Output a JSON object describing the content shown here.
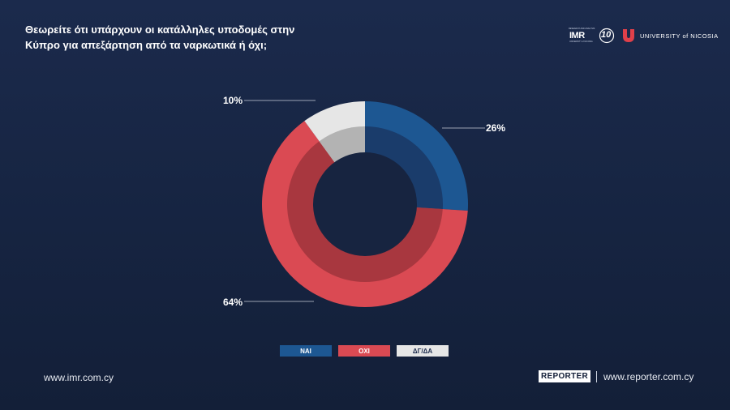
{
  "header": {
    "title_line1": "Θεωρείτε ότι υπάρχουν οι κατάλληλες υποδομές στην",
    "title_line2": "Κύπρο για απεξάρτηση από τα ναρκωτικά ή όχι;"
  },
  "logos": {
    "imr_top": "RESEARCH AND ANALYSIS",
    "imr": "IMR",
    "imr_sub": "UNIVERSITY of NICOSIA",
    "years": "10",
    "unic_name": "UNIVERSITY of NICOSIA"
  },
  "chart_data": {
    "type": "pie",
    "variant": "double-ring-donut",
    "title": "Θεωρείτε ότι υπάρχουν οι κατάλληλες υποδομές στην Κύπρο για απεξάρτηση από τα ναρκωτικά ή όχι;",
    "categories": [
      "ΝΑΙ",
      "ΟΧΙ",
      "ΔΓ/ΔΑ"
    ],
    "values": [
      26,
      64,
      10
    ],
    "data_labels": [
      "26%",
      "64%",
      "10%"
    ],
    "colors": [
      "#1d5792",
      "#da4a53",
      "#e6e6e6"
    ],
    "inner_colors": [
      "#1a3c6b",
      "#a8373f",
      "#b3b3b3"
    ],
    "legend_position": "bottom"
  },
  "footer": {
    "left_url": "www.imr.com.cy",
    "reporter": "REPORTER",
    "right_url": "www.reporter.com.cy"
  }
}
